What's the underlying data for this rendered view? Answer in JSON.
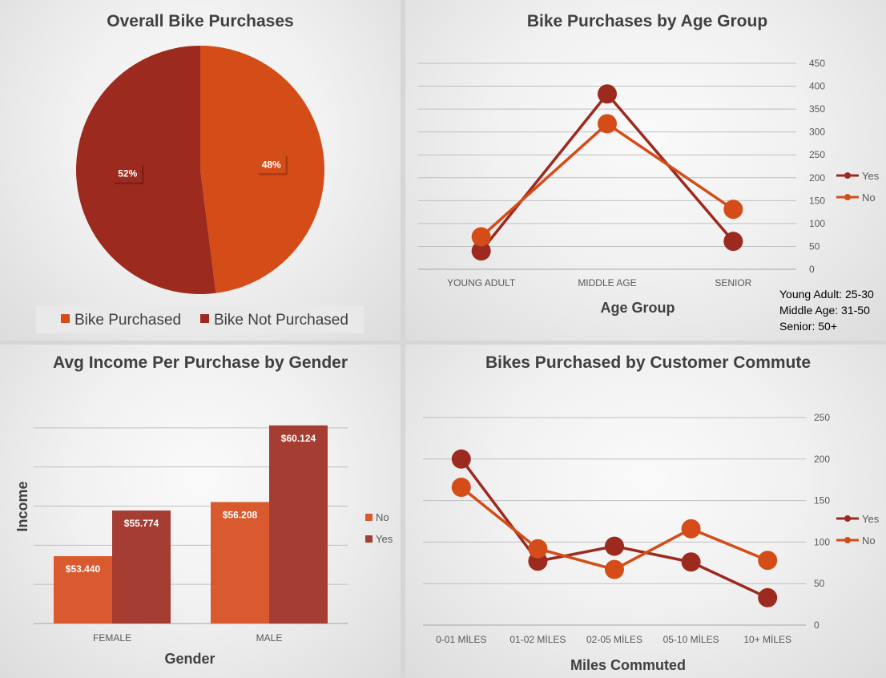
{
  "colors": {
    "yes": "#9c2a1f",
    "no": "#d44c18",
    "bar_no": "#d95a2e",
    "bar_yes": "#a53d32",
    "grid": "#bfbfbf"
  },
  "chart_data": [
    {
      "id": "pie",
      "type": "pie",
      "title": "Overall Bike Purchases",
      "slices": [
        {
          "label": "Bike Purchased",
          "value": 48,
          "display": "48%",
          "color": "#d44c18"
        },
        {
          "label": "Bike Not Purchased",
          "value": 52,
          "display": "52%",
          "color": "#9c2a1f"
        }
      ],
      "legend": "bottom"
    },
    {
      "id": "age",
      "type": "line",
      "title": "Bike Purchases by Age Group",
      "xlabel": "Age Group",
      "ylabel": "",
      "categories": [
        "YOUNG ADULT",
        "MIDDLE AGE",
        "SENIOR"
      ],
      "ylim": [
        0,
        450
      ],
      "yticks": [
        0,
        50,
        100,
        150,
        200,
        250,
        300,
        350,
        400,
        450
      ],
      "series": [
        {
          "name": "Yes",
          "values": [
            40,
            383,
            61
          ],
          "color": "#9c2a1f"
        },
        {
          "name": "No",
          "values": [
            71,
            318,
            131
          ],
          "color": "#d44c18"
        }
      ],
      "legend": "right",
      "note": "Young Adult: 25-30 Middle Age: 31-50 Senior: 50+"
    },
    {
      "id": "income",
      "type": "bar",
      "title": "Avg Income Per Purchase by Gender",
      "xlabel": "Gender",
      "ylabel": "Income",
      "categories": [
        "FEMALE",
        "MALE"
      ],
      "ylim": [
        50000,
        62000
      ],
      "series": [
        {
          "name": "No",
          "values": [
            53440,
            56208
          ],
          "labels": [
            "$53.440",
            "$56.208"
          ],
          "color": "#d95a2e"
        },
        {
          "name": "Yes",
          "values": [
            55774,
            60124
          ],
          "labels": [
            "$55.774",
            "$60.124"
          ],
          "color": "#a53d32"
        }
      ],
      "legend": "right"
    },
    {
      "id": "commute",
      "type": "line",
      "title": "Bikes Purchased by Customer Commute",
      "xlabel": "Miles Commuted",
      "ylabel": "",
      "categories": [
        "0-01 MİLES",
        "01-02 MİLES",
        "02-05 MİLES",
        "05-10 MİLES",
        "10+ MİLES"
      ],
      "ylim": [
        0,
        250
      ],
      "yticks": [
        0,
        50,
        100,
        150,
        200,
        250
      ],
      "series": [
        {
          "name": "Yes",
          "values": [
            200,
            77,
            95,
            76,
            33
          ],
          "color": "#9c2a1f"
        },
        {
          "name": "No",
          "values": [
            166,
            92,
            67,
            116,
            78
          ],
          "color": "#d44c18"
        }
      ],
      "legend": "right"
    }
  ]
}
